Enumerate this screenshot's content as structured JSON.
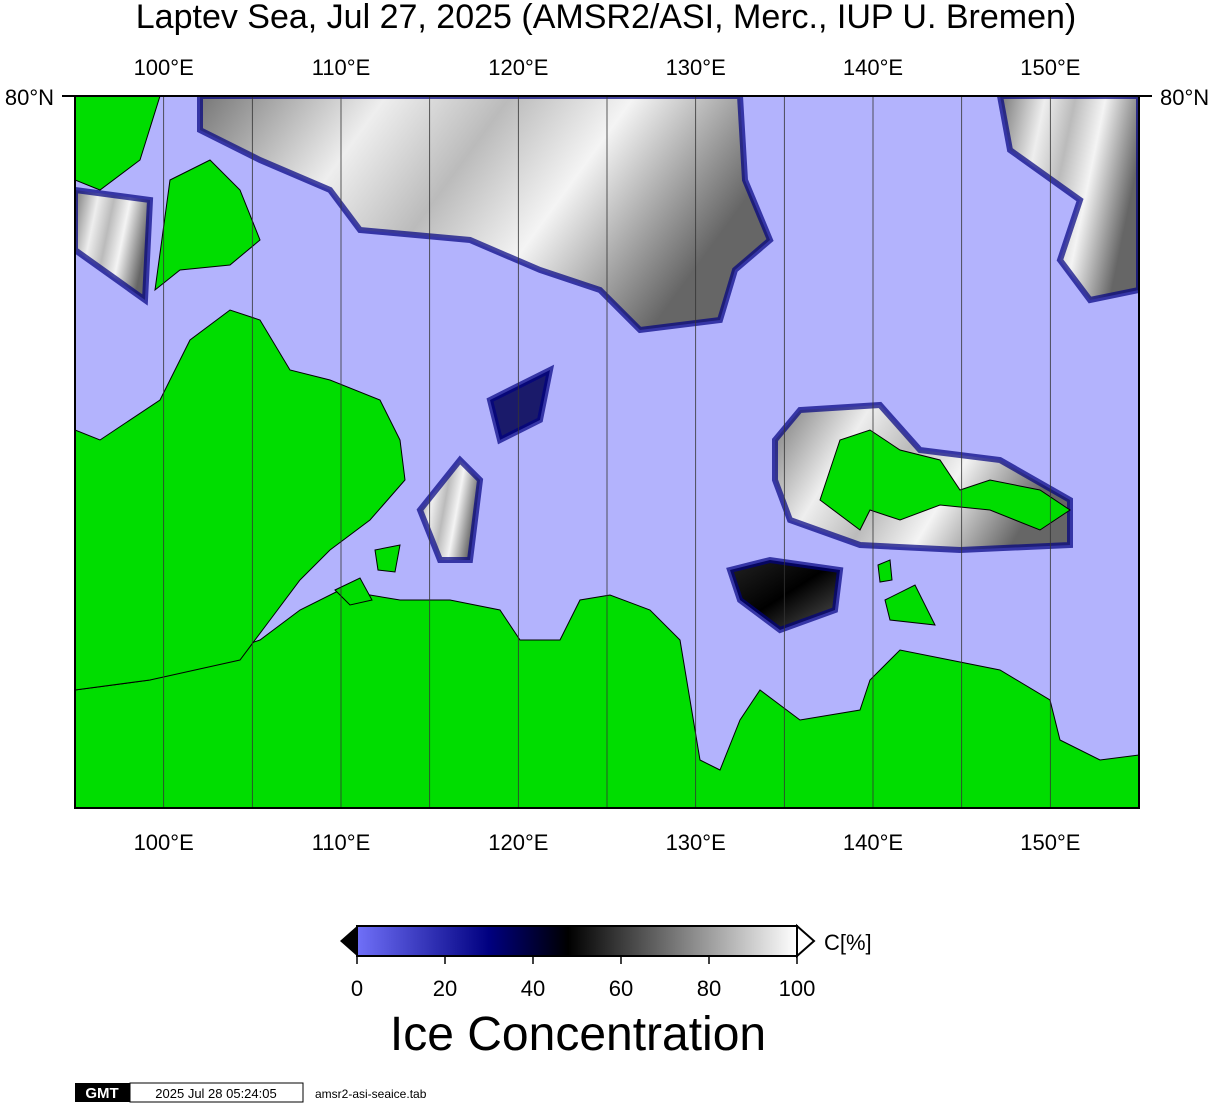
{
  "title": "Laptev Sea, Jul 27, 2025 (AMSR2/ASI, Merc., IUP U. Bremen)",
  "map": {
    "longitude_labels": [
      "100°E",
      "110°E",
      "120°E",
      "130°E",
      "140°E",
      "150°E"
    ],
    "latitude_label": "80°N"
  },
  "colorbar": {
    "ticks": [
      0,
      20,
      40,
      60,
      80,
      100
    ],
    "unit": "C[%]",
    "title": "Ice Concentration"
  },
  "footer": {
    "logo": "GMT",
    "timestamp": "2025 Jul 28 05:24:05",
    "source": "amsr2-asi-seaice.tab"
  }
}
